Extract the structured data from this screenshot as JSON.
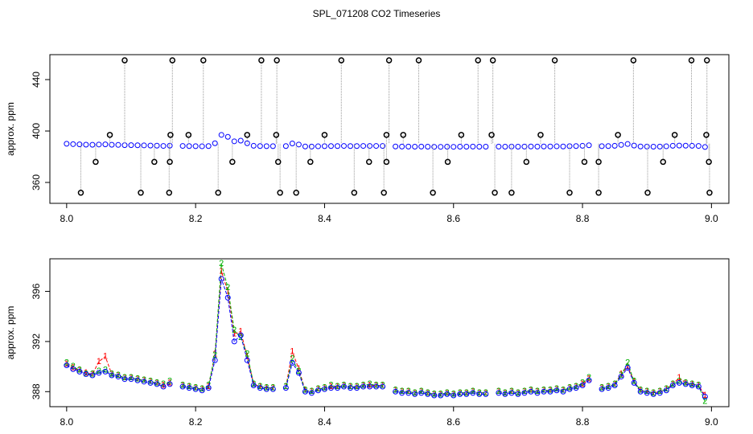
{
  "title": "SPL_071208  CO2 Timeseries",
  "chart_data": [
    {
      "type": "scatter",
      "ylabel": "approx. ppm",
      "xlim": [
        7.974,
        9.027
      ],
      "ylim": [
        343.75,
        459.4
      ],
      "xticks": [
        {
          "value": 8,
          "label": "8.0"
        },
        8.2,
        8.4,
        8.6,
        8.8,
        {
          "value": 9,
          "label": "9.0"
        }
      ],
      "yticks": [
        360,
        400,
        440
      ],
      "series": [
        {
          "color": "#0000ff",
          "x": [
            8.0,
            8.01,
            8.02,
            8.03,
            8.04,
            8.05,
            8.06,
            8.07,
            8.08,
            8.09,
            8.1,
            8.11,
            8.12,
            8.13,
            8.14,
            8.15,
            8.16,
            8.17,
            8.18,
            8.19,
            8.2,
            8.21,
            8.22,
            8.23,
            8.24,
            8.25,
            8.26,
            8.27,
            8.28,
            8.29,
            8.3,
            8.31,
            8.32,
            8.33,
            8.34,
            8.35,
            8.36,
            8.37,
            8.38,
            8.39,
            8.4,
            8.41,
            8.42,
            8.43,
            8.44,
            8.45,
            8.46,
            8.47,
            8.48,
            8.49,
            8.5,
            8.51,
            8.52,
            8.53,
            8.54,
            8.55,
            8.56,
            8.57,
            8.58,
            8.59,
            8.6,
            8.61,
            8.62,
            8.63,
            8.64,
            8.65,
            8.66,
            8.67,
            8.68,
            8.69,
            8.7,
            8.71,
            8.72,
            8.73,
            8.74,
            8.75,
            8.76,
            8.77,
            8.78,
            8.79,
            8.8,
            8.81,
            8.82,
            8.83,
            8.84,
            8.85,
            8.86,
            8.87,
            8.88,
            8.89,
            8.9,
            8.91,
            8.92,
            8.93,
            8.94,
            8.95,
            8.96,
            8.97,
            8.98,
            8.99
          ],
          "values": [
            390.1,
            389.8,
            389.6,
            389.4,
            389.3,
            389.5,
            389.6,
            389.3,
            389.2,
            389.0,
            389.0,
            388.9,
            388.8,
            388.7,
            388.6,
            388.4,
            388.6,
            null,
            388.4,
            388.3,
            388.2,
            388.1,
            388.3,
            390.5,
            397.0,
            395.5,
            392.0,
            392.5,
            390.5,
            388.5,
            388.3,
            388.2,
            388.2,
            null,
            388.3,
            390.3,
            389.5,
            388.0,
            387.9,
            388.1,
            388.2,
            388.3,
            388.3,
            388.4,
            388.3,
            388.3,
            388.4,
            388.4,
            388.4,
            388.4,
            null,
            388.0,
            387.9,
            387.9,
            387.8,
            387.9,
            387.8,
            387.7,
            387.7,
            387.8,
            387.7,
            387.8,
            387.8,
            387.9,
            387.8,
            387.8,
            null,
            387.9,
            387.8,
            387.9,
            387.8,
            387.9,
            388.0,
            387.9,
            388.0,
            388.0,
            388.1,
            388.0,
            388.2,
            388.3,
            388.5,
            388.9,
            null,
            388.2,
            388.3,
            388.5,
            389.2,
            389.9,
            388.7,
            388.0,
            387.9,
            387.8,
            387.9,
            388.1,
            388.5,
            388.7,
            388.6,
            388.5,
            388.4,
            387.6
          ]
        },
        {
          "color": "#000000",
          "x": [
            8.09,
            8.164,
            8.212,
            8.302,
            8.326,
            8.426,
            8.5,
            8.546,
            8.638,
            8.661,
            8.757,
            8.879,
            8.969,
            8.993,
            8.022,
            8.115,
            8.159,
            8.235,
            8.331,
            8.356,
            8.446,
            8.492,
            8.568,
            8.664,
            8.69,
            8.78,
            8.825,
            8.901,
            8.997,
            8.067,
            8.161,
            8.189,
            8.28,
            8.325,
            8.4,
            8.496,
            8.522,
            8.612,
            8.659,
            8.735,
            8.855,
            8.943,
            8.992,
            8.045,
            8.136,
            8.16,
            8.257,
            8.328,
            8.378,
            8.469,
            8.496,
            8.591,
            8.713,
            8.803,
            8.825,
            8.925,
            8.996
          ],
          "values": [
            455,
            455,
            455,
            455,
            455,
            455,
            455,
            455,
            455,
            455,
            455,
            455,
            455,
            455,
            352,
            352,
            352,
            352,
            352,
            352,
            352,
            352,
            352,
            352,
            352,
            352,
            352,
            352,
            352,
            397,
            397,
            397,
            397,
            397,
            397,
            397,
            397,
            397,
            397,
            397,
            397,
            397,
            397,
            376,
            376,
            376,
            376,
            376,
            376,
            376,
            376,
            376,
            376,
            376,
            376,
            376,
            376
          ]
        }
      ]
    },
    {
      "type": "line",
      "ylabel": "approx. ppm",
      "xlim": [
        7.974,
        9.027
      ],
      "ylim": [
        386.8,
        398.6
      ],
      "xticks": [
        {
          "value": 8,
          "label": "8.0"
        },
        8.2,
        8.4,
        8.6,
        8.8,
        {
          "value": 9,
          "label": "9.0"
        }
      ],
      "yticks": [
        388,
        392,
        396
      ],
      "x": [
        8.0,
        8.01,
        8.02,
        8.03,
        8.04,
        8.05,
        8.06,
        8.07,
        8.08,
        8.09,
        8.1,
        8.11,
        8.12,
        8.13,
        8.14,
        8.15,
        8.16,
        8.17,
        8.18,
        8.19,
        8.2,
        8.21,
        8.22,
        8.23,
        8.24,
        8.25,
        8.26,
        8.27,
        8.28,
        8.29,
        8.3,
        8.31,
        8.32,
        8.33,
        8.34,
        8.35,
        8.36,
        8.37,
        8.38,
        8.39,
        8.4,
        8.41,
        8.42,
        8.43,
        8.44,
        8.45,
        8.46,
        8.47,
        8.48,
        8.49,
        8.5,
        8.51,
        8.52,
        8.53,
        8.54,
        8.55,
        8.56,
        8.57,
        8.58,
        8.59,
        8.6,
        8.61,
        8.62,
        8.63,
        8.64,
        8.65,
        8.66,
        8.67,
        8.68,
        8.69,
        8.7,
        8.71,
        8.72,
        8.73,
        8.74,
        8.75,
        8.76,
        8.77,
        8.78,
        8.79,
        8.8,
        8.81,
        8.82,
        8.83,
        8.84,
        8.85,
        8.86,
        8.87,
        8.88,
        8.89,
        8.9,
        8.91,
        8.92,
        8.93,
        8.94,
        8.95,
        8.96,
        8.97,
        8.98,
        8.99
      ],
      "series": [
        {
          "color": "#ff0000",
          "symbol": "1",
          "values": [
            390.2,
            389.9,
            389.7,
            389.5,
            389.4,
            390.4,
            390.8,
            389.4,
            389.3,
            389.1,
            389.1,
            389.0,
            388.9,
            388.8,
            388.7,
            388.5,
            388.7,
            null,
            388.5,
            388.4,
            388.3,
            388.2,
            388.4,
            391.0,
            397.6,
            396.0,
            392.6,
            392.8,
            390.8,
            388.6,
            388.4,
            388.3,
            388.3,
            null,
            388.4,
            391.2,
            389.8,
            388.1,
            388.0,
            388.2,
            388.3,
            388.4,
            388.4,
            388.5,
            388.4,
            388.4,
            388.5,
            388.5,
            388.5,
            388.5,
            null,
            388.1,
            388.0,
            388.0,
            387.9,
            388.0,
            387.9,
            387.8,
            387.8,
            387.9,
            387.8,
            387.9,
            387.9,
            388.0,
            387.9,
            387.9,
            null,
            388.0,
            387.9,
            388.0,
            387.9,
            388.0,
            388.1,
            388.0,
            388.1,
            388.1,
            388.2,
            388.1,
            388.3,
            388.4,
            388.6,
            389.0,
            null,
            388.3,
            388.4,
            388.6,
            389.4,
            390.0,
            388.8,
            388.1,
            388.0,
            387.9,
            388.0,
            388.2,
            388.6,
            389.1,
            388.7,
            388.6,
            388.5,
            387.7
          ]
        },
        {
          "color": "#00b000",
          "symbol": "2",
          "values": [
            390.3,
            390.0,
            389.7,
            389.4,
            389.4,
            389.6,
            389.7,
            389.4,
            389.3,
            389.1,
            389.1,
            389.0,
            388.9,
            388.8,
            388.7,
            388.6,
            388.8,
            null,
            388.5,
            388.4,
            388.3,
            388.2,
            388.5,
            390.9,
            398.2,
            396.3,
            392.9,
            392.3,
            391.0,
            388.6,
            388.4,
            388.3,
            388.3,
            null,
            388.4,
            390.6,
            389.6,
            388.1,
            388.0,
            388.2,
            388.3,
            388.5,
            388.4,
            388.5,
            388.4,
            388.4,
            388.5,
            388.6,
            388.5,
            388.5,
            null,
            388.1,
            388.0,
            388.0,
            387.9,
            388.0,
            387.9,
            387.8,
            387.8,
            387.9,
            387.8,
            387.9,
            387.9,
            388.0,
            387.9,
            387.9,
            null,
            388.0,
            387.9,
            388.0,
            387.9,
            388.0,
            388.1,
            388.0,
            388.1,
            388.1,
            388.2,
            388.1,
            388.3,
            388.4,
            388.7,
            389.1,
            null,
            388.3,
            388.4,
            388.6,
            389.3,
            390.3,
            388.8,
            388.1,
            388.0,
            387.9,
            388.0,
            388.2,
            388.6,
            388.8,
            388.7,
            388.6,
            388.5,
            387.2
          ]
        },
        {
          "color": "#0000ff",
          "values": [
            390.1,
            389.8,
            389.6,
            389.4,
            389.3,
            389.5,
            389.6,
            389.3,
            389.2,
            389.0,
            389.0,
            388.9,
            388.8,
            388.7,
            388.6,
            388.4,
            388.6,
            null,
            388.4,
            388.3,
            388.2,
            388.1,
            388.3,
            390.5,
            397.0,
            395.5,
            392.0,
            392.5,
            390.5,
            388.5,
            388.3,
            388.2,
            388.2,
            null,
            388.3,
            390.3,
            389.5,
            388.0,
            387.9,
            388.1,
            388.2,
            388.3,
            388.3,
            388.4,
            388.3,
            388.3,
            388.4,
            388.4,
            388.4,
            388.4,
            null,
            388.0,
            387.9,
            387.9,
            387.8,
            387.9,
            387.8,
            387.7,
            387.7,
            387.8,
            387.7,
            387.8,
            387.8,
            387.9,
            387.8,
            387.8,
            null,
            387.9,
            387.8,
            387.9,
            387.8,
            387.9,
            388.0,
            387.9,
            388.0,
            388.0,
            388.1,
            388.0,
            388.2,
            388.3,
            388.5,
            388.9,
            null,
            388.2,
            388.3,
            388.5,
            389.2,
            389.9,
            388.7,
            388.0,
            387.9,
            387.8,
            387.9,
            388.1,
            388.5,
            388.7,
            388.6,
            388.5,
            388.4,
            387.6
          ]
        }
      ]
    }
  ]
}
